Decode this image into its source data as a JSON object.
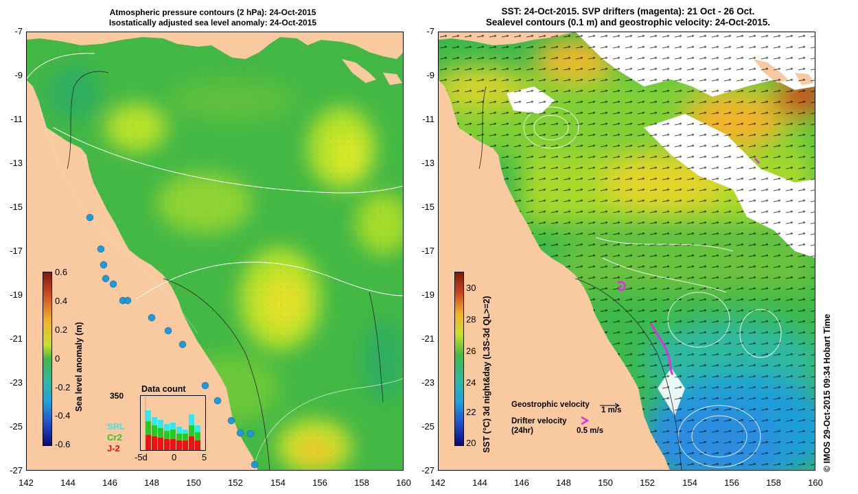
{
  "left_title": {
    "line1": "Atmospheric pressure contours (2 hPa): 24-Oct-2015",
    "line2": "Isostatically adjusted sea level anomaly: 24-Oct-2015"
  },
  "right_title": {
    "line1": "SST: 24-Oct-2015. SVP drifters (magenta): 21 Oct - 26 Oct.",
    "line2": "Sealevel contours (0.1 m) and geostrophic velocity: 24-Oct-2015."
  },
  "latitudes": [
    "-7",
    "-9",
    "-11",
    "-13",
    "-15",
    "-17",
    "-19",
    "-21",
    "-23",
    "-25",
    "-27"
  ],
  "longitudes": [
    "142",
    "144",
    "146",
    "148",
    "150",
    "152",
    "154",
    "156",
    "158",
    "160"
  ],
  "left_colorbar": {
    "label": "Sea level anomaly (m)",
    "ticks": [
      "0.6",
      "0.4",
      "0.2",
      "0",
      "-0.2",
      "-0.4",
      "-0.6"
    ]
  },
  "right_colorbar": {
    "label": "SST (°C) 3d night&day (L3S-3d QL>=2)",
    "ticks": [
      "30",
      "28",
      "26",
      "24",
      "22",
      "20"
    ]
  },
  "data_count": {
    "title": "Data count",
    "ymax": "350",
    "x_ticks": [
      "-5d",
      "0",
      "5"
    ],
    "legend": [
      {
        "label": "SRL",
        "color": "#33e6f0"
      },
      {
        "label": "Cr2",
        "color": "#22cc22"
      },
      {
        "label": "J-2",
        "color": "#ee1111"
      }
    ]
  },
  "legend_right": {
    "geo_label": "Geostrophic velocity",
    "geo_scale": "1 m/s",
    "drifter_label1": "Drifter velocity",
    "drifter_label2": "(24hr)",
    "drifter_scale": "0.5 m/s"
  },
  "credit": "© IMOS 29-Oct-2015 09:34 Hobart Time",
  "colors": {
    "land": "#f9c9a0",
    "sea_green": "#3cb84a",
    "drifter": "#dd33dd"
  }
}
